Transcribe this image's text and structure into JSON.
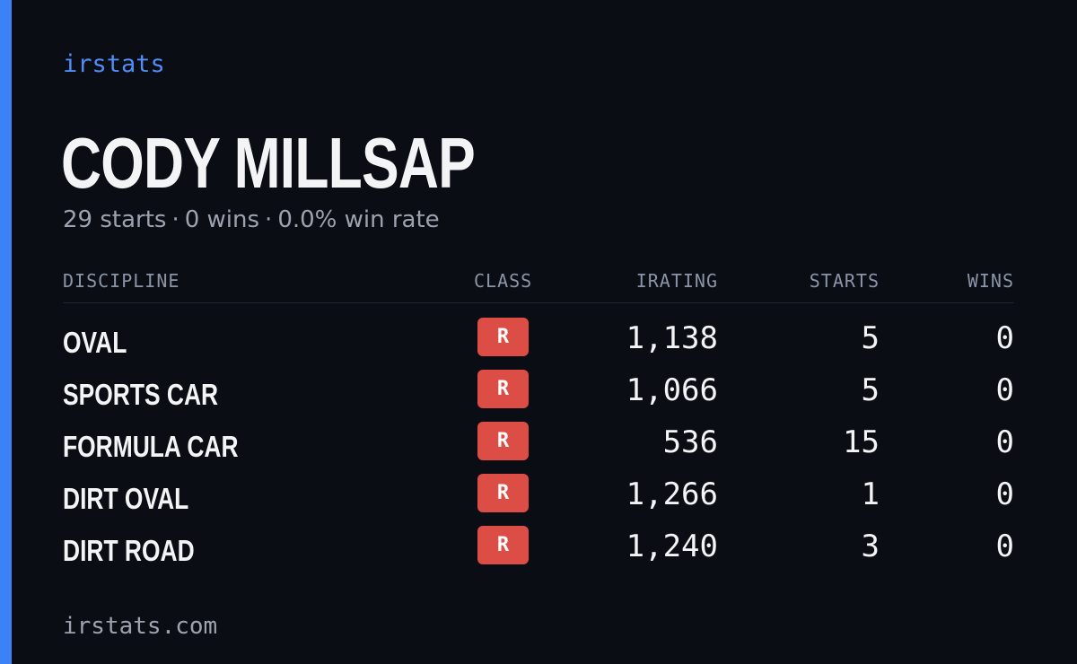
{
  "brand": "irstats",
  "player": {
    "name": "CODY MILLSAP",
    "starts_text": "29 starts",
    "wins_text": "0 wins",
    "win_rate_text": "0.0% win rate",
    "separator": "·"
  },
  "table": {
    "headers": {
      "discipline": "DISCIPLINE",
      "class": "CLASS",
      "irating": "IRATING",
      "starts": "STARTS",
      "wins": "WINS"
    },
    "rows": [
      {
        "discipline": "OVAL",
        "class": "R",
        "irating": "1,138",
        "starts": "5",
        "wins": "0"
      },
      {
        "discipline": "SPORTS CAR",
        "class": "R",
        "irating": "1,066",
        "starts": "5",
        "wins": "0"
      },
      {
        "discipline": "FORMULA CAR",
        "class": "R",
        "irating": "536",
        "starts": "15",
        "wins": "0"
      },
      {
        "discipline": "DIRT OVAL",
        "class": "R",
        "irating": "1,266",
        "starts": "1",
        "wins": "0"
      },
      {
        "discipline": "DIRT ROAD",
        "class": "R",
        "irating": "1,240",
        "starts": "3",
        "wins": "0"
      }
    ]
  },
  "footer": {
    "url": "irstats.com"
  },
  "colors": {
    "accent": "#3b82f6",
    "background": "#0b0d14",
    "class_r_badge": "#dc4d45"
  }
}
